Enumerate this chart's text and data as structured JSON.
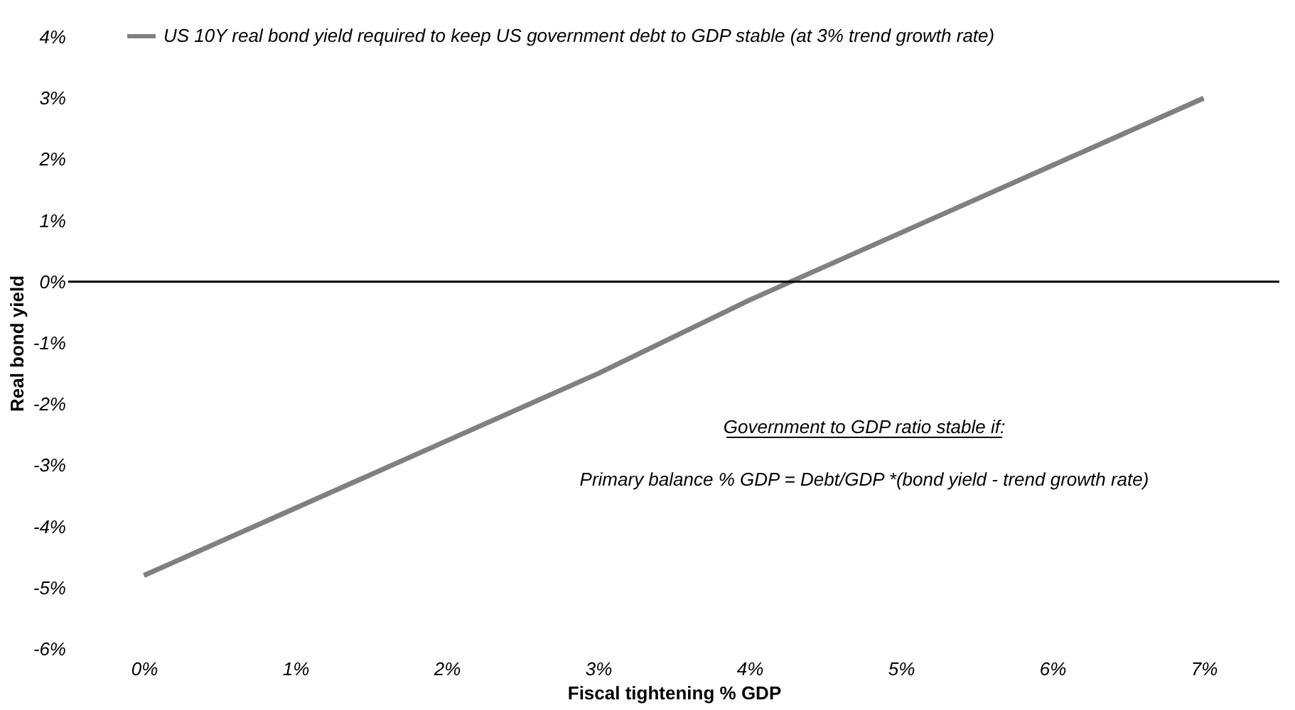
{
  "chart_data": {
    "type": "line",
    "xlabel": "Fiscal tightening % GDP",
    "ylabel": "Real bond yield",
    "categories": [
      "0%",
      "1%",
      "2%",
      "3%",
      "4%",
      "5%",
      "6%",
      "7%"
    ],
    "series": [
      {
        "name": "US 10Y real bond yield required to keep US government debt to GDP stable (at 3% trend growth rate)",
        "color": "#808080",
        "values": [
          -4.8,
          -3.7,
          -2.6,
          -1.5,
          -0.3,
          0.8,
          1.9,
          3.0
        ]
      }
    ],
    "ylim": [
      -6,
      4
    ],
    "yticks": [
      {
        "value": -6,
        "label": "-6%"
      },
      {
        "value": -5,
        "label": "-5%"
      },
      {
        "value": -4,
        "label": "-4%"
      },
      {
        "value": -3,
        "label": "-3%"
      },
      {
        "value": -2,
        "label": "-2%"
      },
      {
        "value": -1,
        "label": "-1%"
      },
      {
        "value": 0,
        "label": "0%"
      },
      {
        "value": 1,
        "label": "1%"
      },
      {
        "value": 2,
        "label": "2%"
      },
      {
        "value": 3,
        "label": "3%"
      },
      {
        "value": 4,
        "label": "4%"
      }
    ],
    "ref_lines": [
      {
        "axis": "y",
        "value": 0,
        "color": "#000000"
      }
    ],
    "annotations": [
      "Government to GDP ratio stable if:",
      "Primary balance % GDP = Debt/GDP *(bond yield - trend growth rate)"
    ],
    "legend": "top left",
    "grid": false,
    "marker": "none",
    "line_style": "solid"
  }
}
